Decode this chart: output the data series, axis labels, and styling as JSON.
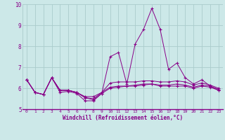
{
  "xlabel": "Windchill (Refroidissement éolien,°C)",
  "background_color": "#cce8e8",
  "grid_color": "#aacccc",
  "line_color": "#880088",
  "xlim": [
    -0.5,
    23.5
  ],
  "ylim": [
    5,
    10
  ],
  "xticks": [
    0,
    1,
    2,
    3,
    4,
    5,
    6,
    7,
    8,
    9,
    10,
    11,
    12,
    13,
    14,
    15,
    16,
    17,
    18,
    19,
    20,
    21,
    22,
    23
  ],
  "yticks": [
    5,
    6,
    7,
    8,
    9,
    10
  ],
  "series": [
    [
      6.4,
      5.8,
      5.7,
      6.5,
      5.8,
      5.85,
      5.75,
      5.4,
      5.4,
      5.75,
      7.5,
      7.7,
      6.2,
      8.1,
      8.8,
      9.8,
      8.8,
      6.9,
      7.2,
      6.5,
      6.2,
      6.4,
      6.1,
      5.9
    ],
    [
      6.4,
      5.8,
      5.7,
      6.5,
      5.9,
      5.9,
      5.8,
      5.6,
      5.6,
      5.8,
      6.25,
      6.3,
      6.3,
      6.3,
      6.35,
      6.35,
      6.3,
      6.3,
      6.35,
      6.3,
      6.15,
      6.25,
      6.15,
      6.0
    ],
    [
      6.4,
      5.8,
      5.7,
      6.5,
      5.9,
      5.9,
      5.8,
      5.55,
      5.5,
      5.8,
      6.05,
      6.1,
      6.1,
      6.15,
      6.2,
      6.2,
      6.15,
      6.15,
      6.2,
      6.15,
      6.05,
      6.15,
      6.1,
      5.95
    ],
    [
      6.4,
      5.8,
      5.7,
      6.5,
      5.9,
      5.9,
      5.8,
      5.55,
      5.45,
      5.75,
      6.0,
      6.05,
      6.1,
      6.1,
      6.15,
      6.2,
      6.1,
      6.1,
      6.1,
      6.1,
      6.0,
      6.1,
      6.05,
      5.9
    ]
  ]
}
